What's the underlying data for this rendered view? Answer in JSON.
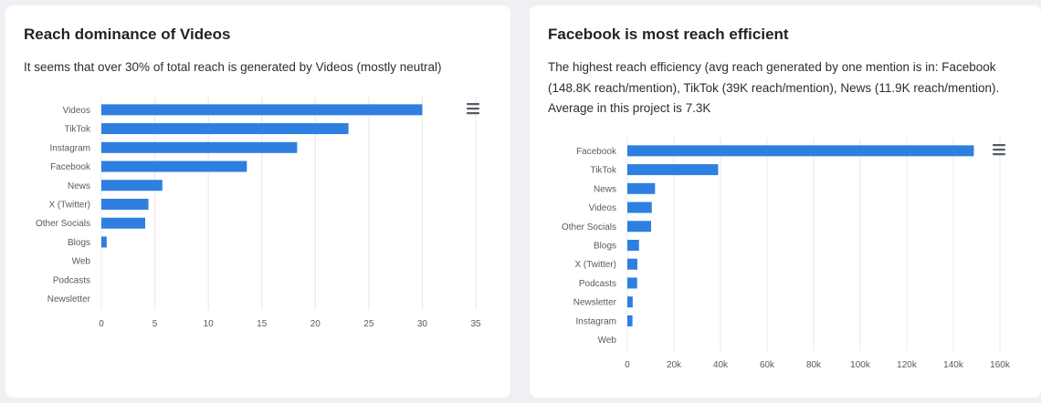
{
  "colors": {
    "bar": "#2e7fe0",
    "card": "#ffffff",
    "background": "#eef0f3"
  },
  "left_card": {
    "title": "Reach dominance of Videos",
    "description": "It seems that over 30% of total reach is generated by Videos (mostly neutral)",
    "menu_icon": "hamburger-menu-icon"
  },
  "right_card": {
    "title": "Facebook is most reach efficient",
    "description": "The highest reach efficiency (avg reach generated by one mention is in: Facebook (148.8K reach/mention), TikTok (39K reach/mention), News (11.9K reach/mention). Average in this project is 7.3K",
    "menu_icon": "hamburger-menu-icon"
  },
  "chart_data": [
    {
      "type": "bar",
      "orientation": "horizontal",
      "categories": [
        "Videos",
        "TikTok",
        "Instagram",
        "Facebook",
        "News",
        "X (Twitter)",
        "Other Socials",
        "Blogs",
        "Web",
        "Podcasts",
        "Newsletter"
      ],
      "values": [
        30.0,
        23.1,
        18.3,
        13.6,
        5.7,
        4.4,
        4.1,
        0.5,
        0,
        0,
        0
      ],
      "xlim": [
        0,
        35
      ],
      "xticks": [
        0,
        5,
        10,
        15,
        20,
        25,
        30,
        35
      ],
      "xtick_labels": [
        "0",
        "5",
        "10",
        "15",
        "20",
        "25",
        "30",
        "35"
      ],
      "grid": true
    },
    {
      "type": "bar",
      "orientation": "horizontal",
      "categories": [
        "Facebook",
        "TikTok",
        "News",
        "Videos",
        "Other Socials",
        "Blogs",
        "X (Twitter)",
        "Podcasts",
        "Newsletter",
        "Instagram",
        "Web"
      ],
      "values": [
        148800,
        39000,
        11900,
        10500,
        10200,
        5000,
        4300,
        4200,
        2300,
        2200,
        0
      ],
      "xlim": [
        0,
        160000
      ],
      "xticks": [
        0,
        20000,
        40000,
        60000,
        80000,
        100000,
        120000,
        140000,
        160000
      ],
      "xtick_labels": [
        "0",
        "20k",
        "40k",
        "60k",
        "80k",
        "100k",
        "120k",
        "140k",
        "160k"
      ],
      "grid": true
    }
  ]
}
